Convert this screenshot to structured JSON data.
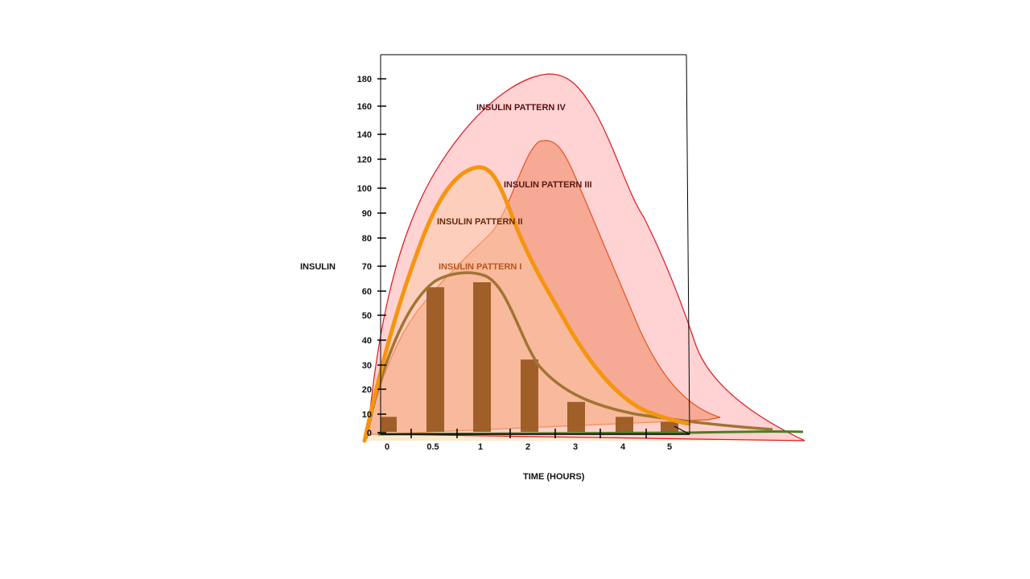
{
  "chart_data": {
    "type": "area",
    "title": "",
    "xlabel": "TIME (HOURS)",
    "ylabel": "INSULIN",
    "x_ticks": [
      "0",
      "0.5",
      "1",
      "2",
      "3",
      "4",
      "5"
    ],
    "y_ticks": [
      "0",
      "10",
      "20",
      "30",
      "40",
      "50",
      "60",
      "70",
      "80",
      "90",
      "100",
      "120",
      "140",
      "160",
      "180"
    ],
    "bars": {
      "categories": [
        "0",
        "0.5",
        "1",
        "2",
        "3",
        "4",
        "5"
      ],
      "values": [
        6,
        58,
        60,
        29,
        12,
        6,
        4
      ],
      "color": "#9b5a22"
    },
    "series": [
      {
        "label": "INSULIN PATTERN IV",
        "peak_x": 2.5,
        "peak_y": 183,
        "fill": "#ffc9cb",
        "stroke": "#e0161b"
      },
      {
        "label": "INSULIN PATTERN III",
        "peak_x": 2.5,
        "peak_y": 136,
        "fill": "#f5a189",
        "stroke": "#e6521a"
      },
      {
        "label": "INSULIN PATTERN II",
        "peak_x": 1,
        "peak_y": 117,
        "fill": "#fcc9a4",
        "stroke": "#f5950f"
      },
      {
        "label": "INSULIN PATTERN I",
        "peak_x": 0.75,
        "peak_y": 64,
        "fill": "none",
        "stroke": "#a07433"
      }
    ],
    "grid": false,
    "legend": "none",
    "colors": {
      "pattern_iv_label": "#5a1010",
      "pattern_iii_label": "#5a1a10",
      "pattern_ii_label": "#6a2a08",
      "pattern_i_label": "#b8551c",
      "baseline_green": "#4f7a2a"
    }
  }
}
